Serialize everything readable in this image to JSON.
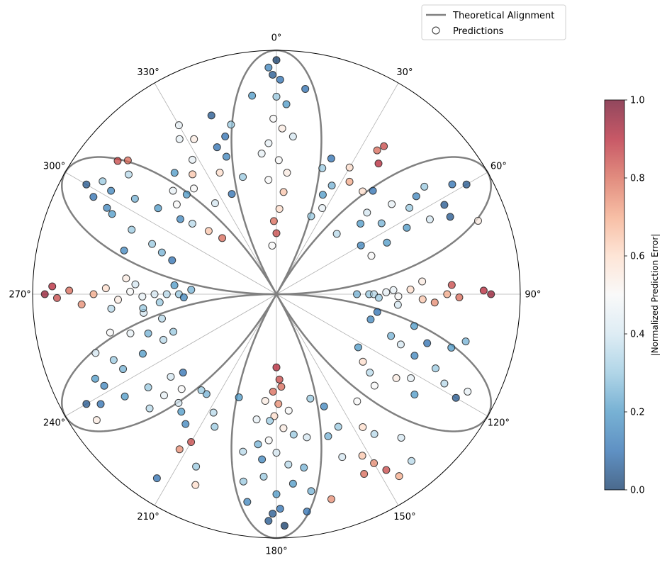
{
  "chart_data": {
    "type": "polar-scatter",
    "title": "",
    "angle_direction": "clockwise",
    "angle_zero": "top",
    "angle_ticks": [
      "0°",
      "30°",
      "60°",
      "90°",
      "120°",
      "150°",
      "180°",
      "210°",
      "240°",
      "270°",
      "300°",
      "330°"
    ],
    "radial_grid": false,
    "rlim": [
      0,
      1
    ],
    "curve": {
      "name": "Theoretical Alignment",
      "type": "line",
      "color": "#808080",
      "formula": "r = |cos(3θ)|"
    },
    "series": [
      {
        "name": "Predictions",
        "type": "scatter",
        "marker": "circle",
        "note": "points given as [angle_deg, radius, |normalized error|]",
        "points": [
          [
            0,
            0.96,
            0.0
          ],
          [
            1,
            0.88,
            0.1
          ],
          [
            -2,
            0.93,
            0.15
          ],
          [
            3,
            0.78,
            0.2
          ],
          [
            -1,
            0.72,
            0.5
          ],
          [
            2,
            0.68,
            0.55
          ],
          [
            -3,
            0.62,
            0.45
          ],
          [
            1,
            0.55,
            0.5
          ],
          [
            4,
            0.42,
            0.65
          ],
          [
            -2,
            0.3,
            0.8
          ],
          [
            0,
            0.25,
            0.85
          ],
          [
            -5,
            0.2,
            0.5
          ],
          [
            8,
            0.85,
            0.1
          ],
          [
            -7,
            0.82,
            0.2
          ],
          [
            6,
            0.65,
            0.4
          ],
          [
            -6,
            0.58,
            0.45
          ],
          [
            5,
            0.5,
            0.55
          ],
          [
            -4,
            0.47,
            0.5
          ],
          [
            2,
            0.35,
            0.6
          ],
          [
            -1,
            0.9,
            0.05
          ],
          [
            0,
            0.81,
            0.3
          ],
          [
            30,
            0.6,
            0.6
          ],
          [
            33,
            0.55,
            0.7
          ],
          [
            25,
            0.45,
            0.2
          ],
          [
            28,
            0.4,
            0.45
          ],
          [
            35,
            0.72,
            0.8
          ],
          [
            36,
            0.75,
            0.85
          ],
          [
            38,
            0.68,
            0.9
          ],
          [
            22,
            0.6,
            0.1
          ],
          [
            20,
            0.55,
            0.3
          ],
          [
            24,
            0.35,
            0.3
          ],
          [
            27,
            0.5,
            0.25
          ],
          [
            60,
            0.9,
            0.05
          ],
          [
            58,
            0.85,
            0.1
          ],
          [
            62,
            0.78,
            0.05
          ],
          [
            55,
            0.7,
            0.15
          ],
          [
            57,
            0.65,
            0.3
          ],
          [
            63,
            0.6,
            0.2
          ],
          [
            52,
            0.6,
            0.45
          ],
          [
            48,
            0.5,
            0.4
          ],
          [
            65,
            0.5,
            0.2
          ],
          [
            68,
            0.42,
            0.5
          ],
          [
            45,
            0.35,
            0.35
          ],
          [
            50,
            0.45,
            0.2
          ],
          [
            54,
            0.75,
            0.3
          ],
          [
            66,
            0.78,
            0.05
          ],
          [
            70,
            0.88,
            0.55
          ],
          [
            64,
            0.7,
            0.4
          ],
          [
            40,
            0.55,
            0.6
          ],
          [
            43,
            0.58,
            0.1
          ],
          [
            56,
            0.52,
            0.25
          ],
          [
            60,
            0.4,
            0.15
          ],
          [
            90,
            0.38,
            0.3
          ],
          [
            90,
            0.4,
            0.35
          ],
          [
            90,
            0.33,
            0.25
          ],
          [
            89,
            0.45,
            0.45
          ],
          [
            91,
            0.5,
            0.5
          ],
          [
            88,
            0.55,
            0.6
          ],
          [
            92,
            0.6,
            0.65
          ],
          [
            90,
            0.7,
            0.7
          ],
          [
            91,
            0.75,
            0.8
          ],
          [
            89,
            0.85,
            0.9
          ],
          [
            90,
            0.88,
            0.95
          ],
          [
            93,
            0.65,
            0.75
          ],
          [
            87,
            0.72,
            0.85
          ],
          [
            95,
            0.5,
            0.4
          ],
          [
            85,
            0.6,
            0.55
          ],
          [
            92,
            0.42,
            0.3
          ],
          [
            88,
            0.48,
            0.45
          ],
          [
            120,
            0.85,
            0.05
          ],
          [
            118,
            0.78,
            0.35
          ],
          [
            115,
            0.72,
            0.3
          ],
          [
            122,
            0.65,
            0.45
          ],
          [
            125,
            0.6,
            0.55
          ],
          [
            112,
            0.55,
            0.4
          ],
          [
            110,
            0.5,
            0.25
          ],
          [
            128,
            0.45,
            0.6
          ],
          [
            105,
            0.4,
            0.15
          ],
          [
            130,
            0.5,
            0.35
          ],
          [
            133,
            0.55,
            0.5
          ],
          [
            108,
            0.65,
            0.1
          ],
          [
            100,
            0.42,
            0.1
          ],
          [
            103,
            0.58,
            0.2
          ],
          [
            126,
            0.7,
            0.2
          ],
          [
            117,
            0.88,
            0.45
          ],
          [
            123,
            0.4,
            0.2
          ],
          [
            114,
            0.62,
            0.15
          ],
          [
            107,
            0.75,
            0.2
          ],
          [
            104,
            0.8,
            0.25
          ],
          [
            150,
            0.8,
            0.75
          ],
          [
            148,
            0.85,
            0.85
          ],
          [
            152,
            0.75,
            0.65
          ],
          [
            145,
            0.7,
            0.35
          ],
          [
            147,
            0.65,
            0.6
          ],
          [
            155,
            0.6,
            0.3
          ],
          [
            143,
            0.55,
            0.5
          ],
          [
            157,
            0.5,
            0.15
          ],
          [
            160,
            0.62,
            0.25
          ],
          [
            162,
            0.45,
            0.3
          ],
          [
            158,
            0.72,
            0.4
          ],
          [
            154,
            0.82,
            0.8
          ],
          [
            146,
            0.9,
            0.7
          ],
          [
            141,
            0.88,
            0.35
          ],
          [
            139,
            0.78,
            0.4
          ],
          [
            180,
            0.3,
            0.9
          ],
          [
            178,
            0.35,
            0.85
          ],
          [
            182,
            0.4,
            0.8
          ],
          [
            179,
            0.45,
            0.75
          ],
          [
            181,
            0.5,
            0.6
          ],
          [
            177,
            0.55,
            0.55
          ],
          [
            183,
            0.6,
            0.5
          ],
          [
            180,
            0.65,
            0.4
          ],
          [
            176,
            0.7,
            0.35
          ],
          [
            184,
            0.75,
            0.3
          ],
          [
            180,
            0.82,
            0.2
          ],
          [
            179,
            0.88,
            0.1
          ],
          [
            181,
            0.9,
            0.05
          ],
          [
            175,
            0.78,
            0.2
          ],
          [
            185,
            0.68,
            0.15
          ],
          [
            173,
            0.58,
            0.3
          ],
          [
            187,
            0.62,
            0.25
          ],
          [
            171,
            0.72,
            0.25
          ],
          [
            189,
            0.52,
            0.45
          ],
          [
            174,
            0.48,
            0.5
          ],
          [
            186,
            0.44,
            0.55
          ],
          [
            168,
            0.6,
            0.4
          ],
          [
            192,
            0.66,
            0.35
          ],
          [
            170,
            0.82,
            0.25
          ],
          [
            190,
            0.78,
            0.3
          ],
          [
            172,
            0.9,
            0.1
          ],
          [
            188,
            0.86,
            0.15
          ],
          [
            178,
            0.95,
            0.0
          ],
          [
            182,
            0.93,
            0.05
          ],
          [
            165,
            0.87,
            0.75
          ],
          [
            177,
            0.38,
            0.8
          ],
          [
            183,
            0.52,
            0.3
          ],
          [
            210,
            0.7,
            0.85
          ],
          [
            212,
            0.75,
            0.75
          ],
          [
            205,
            0.6,
            0.3
          ],
          [
            208,
            0.55,
            0.35
          ],
          [
            215,
            0.5,
            0.25
          ],
          [
            200,
            0.45,
            0.2
          ],
          [
            218,
            0.5,
            0.3
          ],
          [
            222,
            0.6,
            0.4
          ],
          [
            225,
            0.55,
            0.5
          ],
          [
            215,
            0.65,
            0.15
          ],
          [
            219,
            0.62,
            0.2
          ],
          [
            203,
            0.85,
            0.6
          ],
          [
            205,
            0.78,
            0.3
          ],
          [
            213,
            0.9,
            0.1
          ],
          [
            228,
            0.7,
            0.35
          ],
          [
            240,
            0.9,
            0.05
          ],
          [
            238,
            0.85,
            0.1
          ],
          [
            242,
            0.8,
            0.15
          ],
          [
            236,
            0.75,
            0.2
          ],
          [
            244,
            0.7,
            0.25
          ],
          [
            234,
            0.65,
            0.3
          ],
          [
            246,
            0.6,
            0.2
          ],
          [
            232,
            0.55,
            0.4
          ],
          [
            248,
            0.5,
            0.35
          ],
          [
            230,
            0.5,
            0.1
          ],
          [
            250,
            0.45,
            0.3
          ],
          [
            253,
            0.55,
            0.25
          ],
          [
            255,
            0.62,
            0.45
          ],
          [
            248,
            0.72,
            0.3
          ],
          [
            245,
            0.82,
            0.2
          ],
          [
            228,
            0.62,
            0.45
          ],
          [
            235,
            0.9,
            0.55
          ],
          [
            252,
            0.78,
            0.4
          ],
          [
            258,
            0.48,
            0.35
          ],
          [
            257,
            0.7,
            0.5
          ],
          [
            262,
            0.55,
            0.4
          ],
          [
            270,
            0.4,
            0.3
          ],
          [
            270,
            0.45,
            0.35
          ],
          [
            270,
            0.5,
            0.4
          ],
          [
            269,
            0.55,
            0.45
          ],
          [
            271,
            0.6,
            0.5
          ],
          [
            268,
            0.65,
            0.55
          ],
          [
            272,
            0.7,
            0.6
          ],
          [
            270,
            0.75,
            0.7
          ],
          [
            271,
            0.85,
            0.8
          ],
          [
            269,
            0.9,
            0.85
          ],
          [
            270,
            0.95,
            0.95
          ],
          [
            272,
            0.92,
            0.9
          ],
          [
            267,
            0.8,
            0.75
          ],
          [
            273,
            0.35,
            0.25
          ],
          [
            266,
            0.48,
            0.3
          ],
          [
            274,
            0.58,
            0.4
          ],
          [
            265,
            0.68,
            0.35
          ],
          [
            276,
            0.62,
            0.55
          ],
          [
            275,
            0.42,
            0.2
          ],
          [
            264,
            0.55,
            0.3
          ],
          [
            268,
            0.38,
            0.15
          ],
          [
            300,
            0.9,
            0.05
          ],
          [
            298,
            0.85,
            0.1
          ],
          [
            302,
            0.8,
            0.15
          ],
          [
            296,
            0.75,
            0.2
          ],
          [
            304,
            0.7,
            0.25
          ],
          [
            294,
            0.65,
            0.3
          ],
          [
            306,
            0.6,
            0.2
          ],
          [
            292,
            0.55,
            0.3
          ],
          [
            308,
            0.5,
            0.15
          ],
          [
            290,
            0.5,
            0.25
          ],
          [
            310,
            0.45,
            0.35
          ],
          [
            288,
            0.45,
            0.1
          ],
          [
            312,
            0.55,
            0.5
          ],
          [
            315,
            0.6,
            0.45
          ],
          [
            318,
            0.55,
            0.2
          ],
          [
            320,
            0.65,
            0.2
          ],
          [
            286,
            0.65,
            0.15
          ],
          [
            303,
            0.85,
            0.3
          ],
          [
            309,
            0.78,
            0.35
          ],
          [
            297,
            0.78,
            0.15
          ],
          [
            313,
            0.38,
            0.65
          ],
          [
            316,
            0.32,
            0.8
          ],
          [
            310,
            0.85,
            0.85
          ],
          [
            312,
            0.82,
            0.8
          ],
          [
            330,
            0.8,
            0.45
          ],
          [
            332,
            0.72,
            0.55
          ],
          [
            328,
            0.65,
            0.45
          ],
          [
            325,
            0.6,
            0.65
          ],
          [
            335,
            0.55,
            0.6
          ],
          [
            322,
            0.55,
            0.5
          ],
          [
            338,
            0.65,
            0.1
          ],
          [
            340,
            0.6,
            0.15
          ],
          [
            342,
            0.68,
            0.1
          ],
          [
            345,
            0.72,
            0.3
          ],
          [
            326,
            0.45,
            0.4
          ],
          [
            336,
            0.45,
            0.1
          ],
          [
            328,
            0.75,
            0.45
          ],
          [
            340,
            0.78,
            0.05
          ],
          [
            344,
            0.5,
            0.3
          ]
        ]
      }
    ],
    "legend": {
      "position": "top-right",
      "entries": [
        "Theoretical Alignment",
        "Predictions"
      ]
    },
    "colorbar": {
      "label": "|Normalized Prediction Error|",
      "min": 0.0,
      "max": 1.0,
      "ticks": [
        "0.0",
        "0.2",
        "0.4",
        "0.6",
        "0.8",
        "1.0"
      ],
      "tick_values": [
        0.0,
        0.2,
        0.4,
        0.6,
        0.8,
        1.0
      ],
      "colormap": "RdBu_r",
      "stops": [
        "#053061",
        "#2166ac",
        "#4393c3",
        "#92c5de",
        "#d1e5f0",
        "#f7f7f7",
        "#fddbc7",
        "#f4a582",
        "#d6604d",
        "#b2182b",
        "#67001f"
      ]
    }
  }
}
